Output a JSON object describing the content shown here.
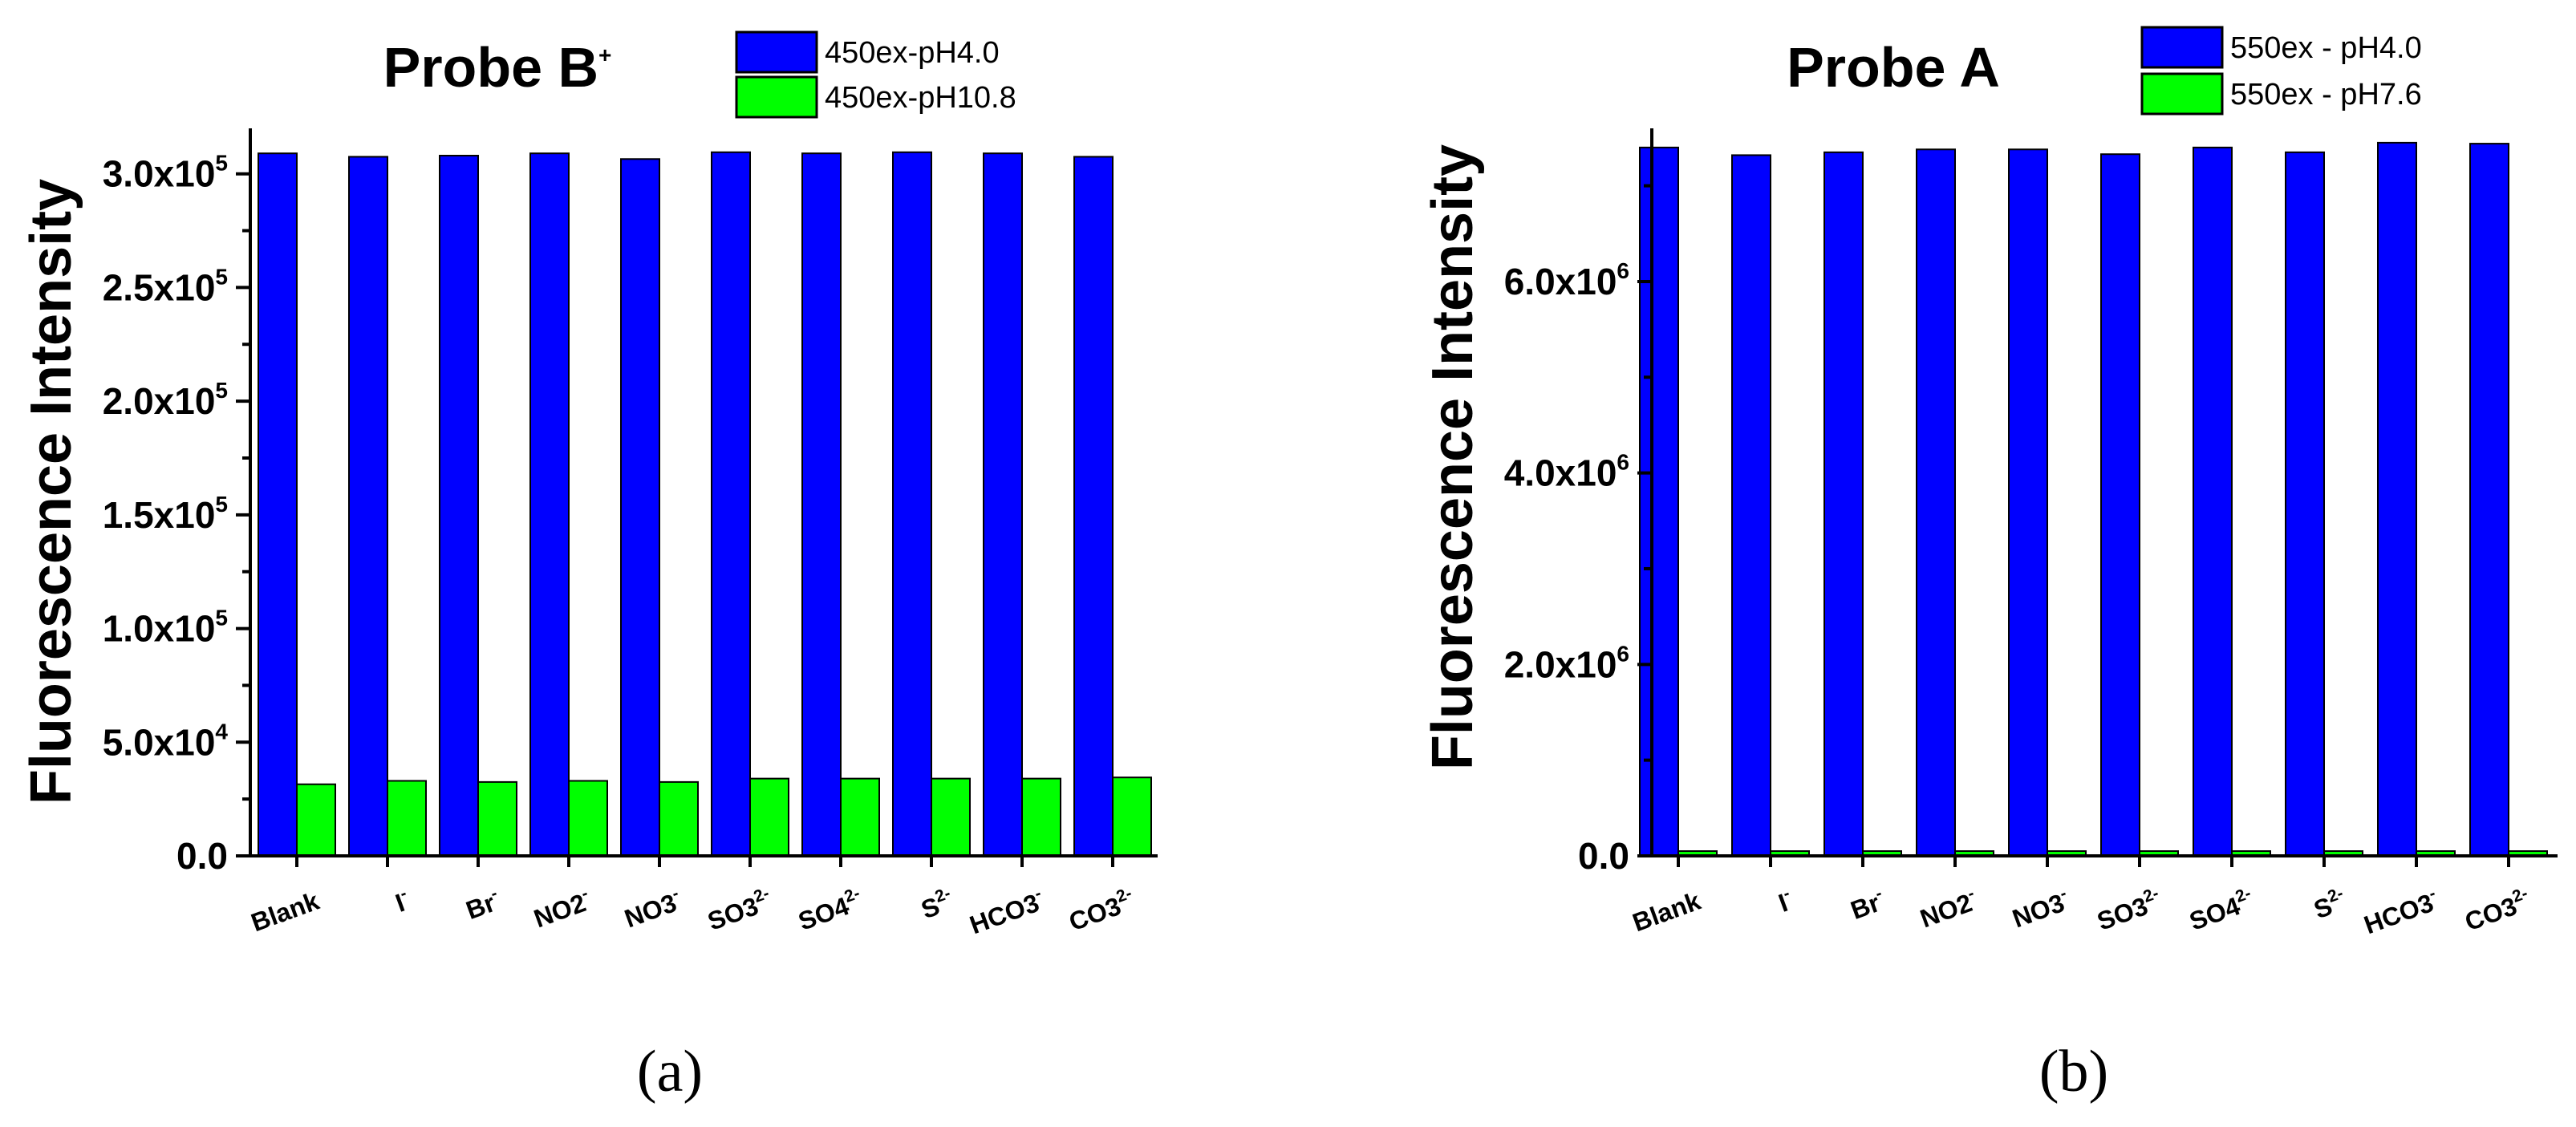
{
  "chart_data": [
    {
      "type": "bar",
      "title": "Probe B",
      "title_superscript": "+",
      "xlabel": "",
      "ylabel": "Fluorescence Intensity",
      "ylim": [
        0,
        320000
      ],
      "yticks": [
        {
          "value": 0,
          "mant": "0.0",
          "exp": ""
        },
        {
          "value": 50000,
          "mant": "5.0x10",
          "exp": "4"
        },
        {
          "value": 100000,
          "mant": "1.0x10",
          "exp": "5"
        },
        {
          "value": 150000,
          "mant": "1.5x10",
          "exp": "5"
        },
        {
          "value": 200000,
          "mant": "2.0x10",
          "exp": "5"
        },
        {
          "value": 250000,
          "mant": "2.5x10",
          "exp": "5"
        },
        {
          "value": 300000,
          "mant": "3.0x10",
          "exp": "5"
        }
      ],
      "categories": [
        {
          "base": "Blank",
          "sup": ""
        },
        {
          "base": "I",
          "sup": "-"
        },
        {
          "base": "Br",
          "sup": "-"
        },
        {
          "base": "NO2",
          "sup": "-"
        },
        {
          "base": "NO3",
          "sup": "-"
        },
        {
          "base": "SO3",
          "sup": "2-"
        },
        {
          "base": "SO4",
          "sup": "2-"
        },
        {
          "base": "S",
          "sup": "2-"
        },
        {
          "base": "HCO3",
          "sup": "-"
        },
        {
          "base": "CO3",
          "sup": "2-"
        }
      ],
      "series": [
        {
          "name": "450ex-pH4.0",
          "color": "#0000ff",
          "values": [
            309000,
            307500,
            308000,
            309000,
            306500,
            309500,
            309000,
            309500,
            309000,
            307500
          ]
        },
        {
          "name": "450ex-pH10.8",
          "color": "#00ff00",
          "values": [
            31500,
            33000,
            32500,
            33000,
            32500,
            34000,
            34000,
            34000,
            34000,
            34500
          ]
        }
      ],
      "legend_position": "top-right",
      "panel_label": "(a)"
    },
    {
      "type": "bar",
      "title": "Probe A",
      "title_superscript": "",
      "xlabel": "",
      "ylabel": "Fluorescence Intensity",
      "ylim": [
        0,
        7600000
      ],
      "yticks": [
        {
          "value": 0,
          "mant": "0.0",
          "exp": ""
        },
        {
          "value": 2000000,
          "mant": "2.0x10",
          "exp": "6"
        },
        {
          "value": 4000000,
          "mant": "4.0x10",
          "exp": "6"
        },
        {
          "value": 6000000,
          "mant": "6.0x10",
          "exp": "6"
        }
      ],
      "categories": [
        {
          "base": "Blank",
          "sup": ""
        },
        {
          "base": "I",
          "sup": "-"
        },
        {
          "base": "Br",
          "sup": "-"
        },
        {
          "base": "NO2",
          "sup": "-"
        },
        {
          "base": "NO3",
          "sup": "-"
        },
        {
          "base": "SO3",
          "sup": "2-"
        },
        {
          "base": "SO4",
          "sup": "2-"
        },
        {
          "base": "S",
          "sup": "2-"
        },
        {
          "base": "HCO3",
          "sup": "-"
        },
        {
          "base": "CO3",
          "sup": "2-"
        }
      ],
      "series": [
        {
          "name": "550ex - pH4.0",
          "color": "#0000ff",
          "values": [
            7400000,
            7320000,
            7350000,
            7380000,
            7380000,
            7330000,
            7400000,
            7350000,
            7450000,
            7440000
          ]
        },
        {
          "name": "550ex - pH7.6",
          "color": "#00ff00",
          "values": [
            50000,
            50000,
            50000,
            50000,
            50000,
            50000,
            50000,
            50000,
            50000,
            50000
          ]
        }
      ],
      "legend_position": "top-right",
      "panel_label": "(b)"
    }
  ]
}
